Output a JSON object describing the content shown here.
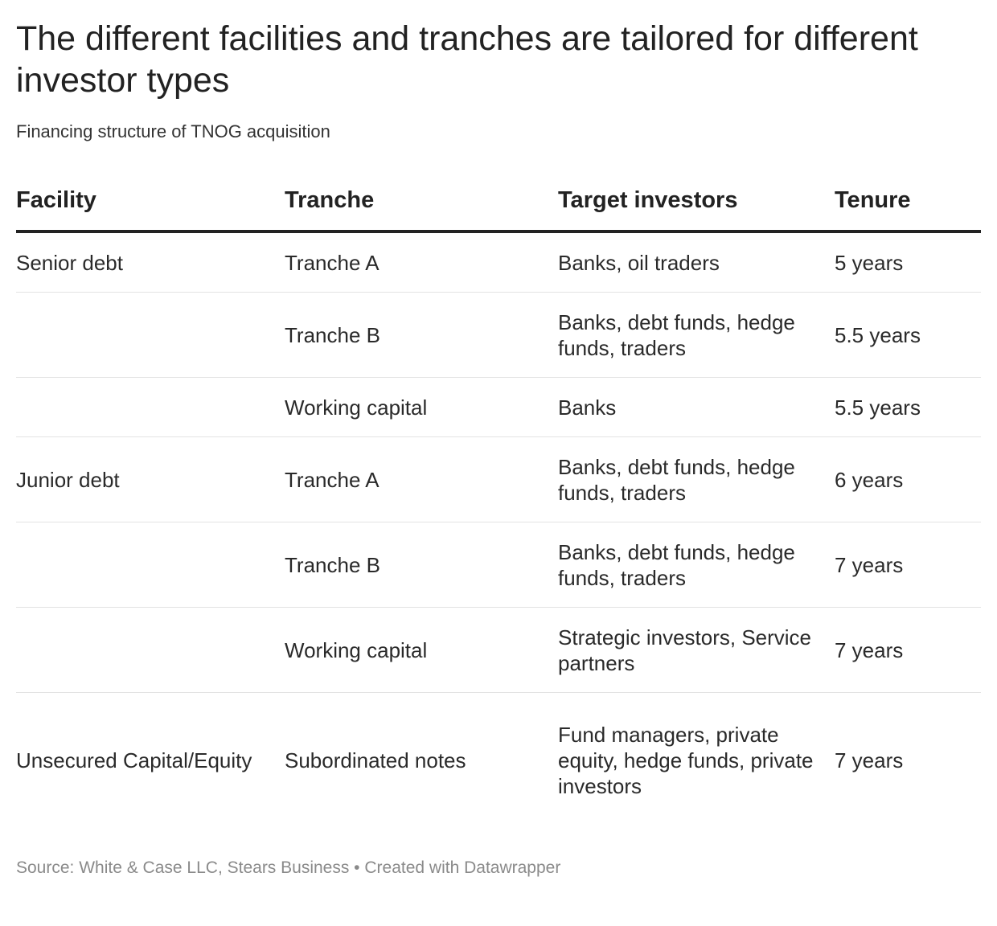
{
  "chart_data": {
    "type": "table",
    "title": "The different facilities and tranches are tailored for different investor types",
    "subtitle": "Financing structure of TNOG acquisition",
    "columns": [
      "Facility",
      "Tranche",
      "Target investors",
      "Tenure"
    ],
    "rows": [
      {
        "facility": "Senior debt",
        "tranche": "Tranche A",
        "investors": "Banks, oil traders",
        "tenure": "5 years"
      },
      {
        "facility": "",
        "tranche": "Tranche B",
        "investors": "Banks, debt funds, hedge funds, traders",
        "tenure": "5.5 years"
      },
      {
        "facility": "",
        "tranche": "Working capital",
        "investors": "Banks",
        "tenure": "5.5 years"
      },
      {
        "facility": "Junior debt",
        "tranche": "Tranche A",
        "investors": "Banks, debt funds, hedge funds, traders",
        "tenure": "6 years"
      },
      {
        "facility": "",
        "tranche": "Tranche B",
        "investors": "Banks, debt funds, hedge funds, traders",
        "tenure": "7 years"
      },
      {
        "facility": "",
        "tranche": "Working capital",
        "investors": "Strategic investors, Service partners",
        "tenure": "7 years"
      },
      {
        "facility": "Unsecured Capital/Equity",
        "tranche": "Subordinated notes",
        "investors": "Fund managers, private equity, hedge funds, private investors",
        "tenure": "7 years"
      }
    ],
    "source": "Source: White & Case LLC, Stears Business • Created with Datawrapper"
  }
}
